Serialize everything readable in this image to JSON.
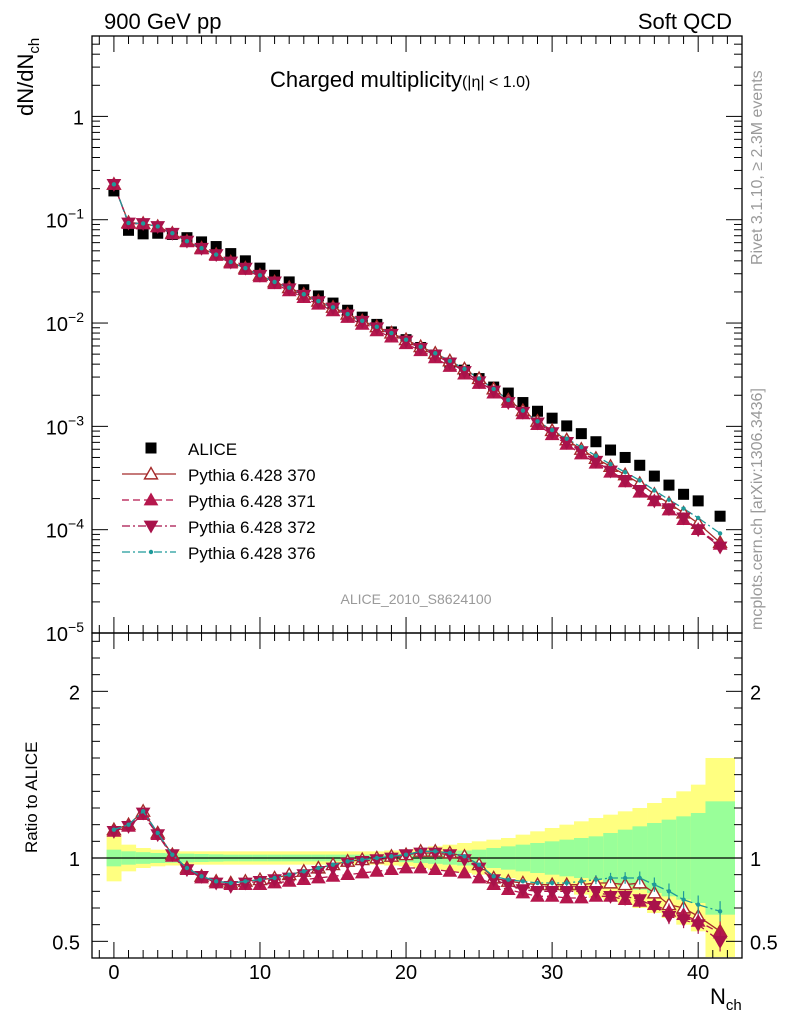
{
  "header": {
    "left": "900 GeV pp",
    "right": "Soft QCD"
  },
  "side_text": {
    "rivet": "Rivet 3.1.10, ≥ 2.3M events",
    "mcplots": "mcplots.cern.ch [arXiv:1306.3436]"
  },
  "chart_data": [
    {
      "type": "scatter",
      "panel": "main",
      "title_main": "Charged multiplicity",
      "title_sub": "(|η| < 1.0)",
      "ylabel": "dN/dN",
      "ylabel_sub": "ch",
      "yscale": "log",
      "ylim": [
        1e-05,
        6
      ],
      "xlim": [
        -1.5,
        43
      ],
      "analysis_label": "ALICE_2010_S8624100",
      "y_tick_labels": [
        {
          "base": "10",
          "exp": "−5",
          "value": 1e-05
        },
        {
          "base": "10",
          "exp": "−4",
          "value": 0.0001
        },
        {
          "base": "10",
          "exp": "−3",
          "value": 0.001
        },
        {
          "base": "10",
          "exp": "−2",
          "value": 0.01
        },
        {
          "base": "10",
          "exp": "−1",
          "value": 0.1
        },
        {
          "base": "1",
          "exp": "",
          "value": 1
        }
      ],
      "legend": {
        "placement": "lower-left",
        "entries": [
          "ALICE",
          "Pythia 6.428 370",
          "Pythia 6.428 371",
          "Pythia 6.428 372",
          "Pythia 6.428 376"
        ]
      },
      "x": [
        0,
        1,
        2,
        3,
        4,
        5,
        6,
        7,
        8,
        9,
        10,
        11,
        12,
        13,
        14,
        15,
        16,
        17,
        18,
        19,
        20,
        21,
        22,
        23,
        24,
        25,
        26,
        27,
        28,
        29,
        30,
        31,
        32,
        33,
        34,
        35,
        36,
        37,
        38,
        39,
        40,
        41.5
      ],
      "series": [
        {
          "name": "ALICE",
          "color": "#000000",
          "marker": "square",
          "values": [
            0.19,
            0.079,
            0.073,
            0.074,
            0.072,
            0.067,
            0.061,
            0.055,
            0.047,
            0.04,
            0.034,
            0.029,
            0.025,
            0.021,
            0.0183,
            0.0156,
            0.0133,
            0.0114,
            0.0097,
            0.0082,
            0.0069,
            0.0058,
            0.0049,
            0.0041,
            0.0035,
            0.0029,
            0.0024,
            0.0021,
            0.0017,
            0.0014,
            0.0012,
            0.00101,
            0.00085,
            0.00071,
            0.00059,
            0.0005,
            0.00042,
            0.00033,
            0.00027,
            0.00022,
            0.00019,
            0.000135
          ]
        },
        {
          "name": "Pythia 6.428 370",
          "color": "#a52a2a",
          "marker": "triangle-up-open",
          "line": "solid",
          "values": [
            0.22,
            0.094,
            0.092,
            0.086,
            0.074,
            0.062,
            0.053,
            0.046,
            0.039,
            0.034,
            0.029,
            0.025,
            0.022,
            0.019,
            0.0163,
            0.0142,
            0.0122,
            0.0105,
            0.0092,
            0.008,
            0.0069,
            0.0059,
            0.0051,
            0.0043,
            0.0036,
            0.0029,
            0.0023,
            0.0018,
            0.00142,
            0.00112,
            0.00091,
            0.00074,
            0.0006,
            0.00049,
            0.00041,
            0.00034,
            0.00028,
            0.00022,
            0.00018,
            0.000145,
            0.000115,
            7.5e-05
          ]
        },
        {
          "name": "Pythia 6.428 371",
          "color": "#b5174d",
          "marker": "triangle-up",
          "line": "dashed",
          "values": [
            0.22,
            0.092,
            0.091,
            0.085,
            0.073,
            0.061,
            0.052,
            0.045,
            0.038,
            0.033,
            0.028,
            0.024,
            0.0205,
            0.0176,
            0.0152,
            0.0131,
            0.0113,
            0.0097,
            0.0084,
            0.0073,
            0.0063,
            0.0054,
            0.0046,
            0.0038,
            0.0032,
            0.0026,
            0.0021,
            0.0017,
            0.00132,
            0.00104,
            0.00083,
            0.00067,
            0.00054,
            0.00044,
            0.00036,
            0.00029,
            0.00023,
            0.00019,
            0.000155,
            0.000125,
            0.0001,
            7.2e-05
          ]
        },
        {
          "name": "Pythia 6.428 372",
          "color": "#a8124a",
          "marker": "triangle-down",
          "line": "dashdot",
          "values": [
            0.22,
            0.093,
            0.092,
            0.086,
            0.074,
            0.062,
            0.053,
            0.046,
            0.039,
            0.034,
            0.029,
            0.025,
            0.0215,
            0.0186,
            0.0161,
            0.014,
            0.012,
            0.0104,
            0.009,
            0.0078,
            0.0067,
            0.0057,
            0.0049,
            0.0041,
            0.0034,
            0.0027,
            0.0022,
            0.0017,
            0.00137,
            0.00108,
            0.00087,
            0.0007,
            0.00057,
            0.00046,
            0.00037,
            0.0003,
            0.00024,
            0.00019,
            0.00016,
            0.00013,
            0.0001,
            6.8e-05
          ]
        },
        {
          "name": "Pythia 6.428 376",
          "color": "#1e9a9a",
          "marker": "dot",
          "line": "dashdot",
          "values": [
            0.22,
            0.093,
            0.092,
            0.086,
            0.074,
            0.062,
            0.053,
            0.046,
            0.039,
            0.034,
            0.029,
            0.025,
            0.022,
            0.019,
            0.0163,
            0.0142,
            0.0122,
            0.0105,
            0.0092,
            0.008,
            0.0069,
            0.0059,
            0.0051,
            0.0043,
            0.0036,
            0.0029,
            0.0023,
            0.0018,
            0.00142,
            0.00112,
            0.00092,
            0.00076,
            0.00063,
            0.00052,
            0.00043,
            0.00036,
            0.0003,
            0.00024,
            0.000195,
            0.00016,
            0.00013,
            9.2e-05
          ]
        }
      ]
    },
    {
      "type": "line",
      "panel": "ratio",
      "ylabel": "Ratio to ALICE",
      "xlabel": "N",
      "xlabel_sub": "ch",
      "ylim": [
        0.4,
        2.35
      ],
      "xlim": [
        -1.5,
        43
      ],
      "x_ticks": [
        0,
        10,
        20,
        30,
        40
      ],
      "y_ticks": [
        0.5,
        1,
        2
      ],
      "reference_line": 1,
      "uncertainty_bands": {
        "edges": [
          -0.5,
          0.5,
          1.5,
          2.5,
          3.5,
          4.5,
          5.5,
          6.5,
          7.5,
          8.5,
          9.5,
          10.5,
          11.5,
          12.5,
          13.5,
          14.5,
          15.5,
          16.5,
          17.5,
          18.5,
          19.5,
          20.5,
          21.5,
          22.5,
          23.5,
          24.5,
          25.5,
          26.5,
          27.5,
          28.5,
          29.5,
          30.5,
          31.5,
          32.5,
          33.5,
          34.5,
          35.5,
          36.5,
          37.5,
          38.5,
          39.5,
          40.5,
          42.5
        ],
        "green_color": "#99ff99",
        "yellow_color": "#ffff80",
        "green_halfwidth": [
          0.05,
          0.04,
          0.035,
          0.03,
          0.028,
          0.026,
          0.024,
          0.022,
          0.02,
          0.02,
          0.02,
          0.02,
          0.02,
          0.02,
          0.02,
          0.02,
          0.02,
          0.02,
          0.02,
          0.022,
          0.025,
          0.03,
          0.035,
          0.04,
          0.045,
          0.05,
          0.06,
          0.07,
          0.08,
          0.09,
          0.1,
          0.11,
          0.12,
          0.13,
          0.15,
          0.17,
          0.19,
          0.21,
          0.23,
          0.25,
          0.27,
          0.34
        ],
        "yellow_halfwidth": [
          0.14,
          0.08,
          0.06,
          0.05,
          0.045,
          0.04,
          0.04,
          0.04,
          0.04,
          0.04,
          0.04,
          0.04,
          0.04,
          0.04,
          0.04,
          0.04,
          0.04,
          0.04,
          0.04,
          0.045,
          0.05,
          0.06,
          0.07,
          0.08,
          0.09,
          0.1,
          0.11,
          0.12,
          0.14,
          0.16,
          0.18,
          0.2,
          0.22,
          0.24,
          0.26,
          0.28,
          0.3,
          0.33,
          0.36,
          0.4,
          0.44,
          0.6
        ]
      },
      "x": [
        0,
        1,
        2,
        3,
        4,
        5,
        6,
        7,
        8,
        9,
        10,
        11,
        12,
        13,
        14,
        15,
        16,
        17,
        18,
        19,
        20,
        21,
        22,
        23,
        24,
        25,
        26,
        27,
        28,
        29,
        30,
        31,
        32,
        33,
        34,
        35,
        36,
        37,
        38,
        39,
        40,
        41.5
      ],
      "series": [
        {
          "name": "Pythia 6.428 370",
          "color": "#a52a2a",
          "marker": "triangle-up-open",
          "line": "solid",
          "values": [
            1.17,
            1.2,
            1.28,
            1.15,
            1.02,
            0.94,
            0.89,
            0.86,
            0.85,
            0.86,
            0.87,
            0.88,
            0.9,
            0.92,
            0.94,
            0.96,
            0.98,
            0.99,
            1.0,
            1.01,
            1.02,
            1.04,
            1.04,
            1.03,
            1.01,
            0.96,
            0.88,
            0.86,
            0.85,
            0.84,
            0.84,
            0.84,
            0.84,
            0.85,
            0.85,
            0.84,
            0.85,
            0.79,
            0.72,
            0.7,
            0.65,
            0.56
          ]
        },
        {
          "name": "Pythia 6.428 371",
          "color": "#b5174d",
          "marker": "triangle-up",
          "line": "dashed",
          "values": [
            1.16,
            1.19,
            1.26,
            1.14,
            1.01,
            0.93,
            0.88,
            0.85,
            0.84,
            0.84,
            0.84,
            0.85,
            0.86,
            0.87,
            0.88,
            0.89,
            0.9,
            0.91,
            0.92,
            0.93,
            0.94,
            0.94,
            0.93,
            0.92,
            0.91,
            0.88,
            0.84,
            0.81,
            0.79,
            0.77,
            0.77,
            0.76,
            0.76,
            0.77,
            0.77,
            0.75,
            0.74,
            0.72,
            0.68,
            0.66,
            0.62,
            0.55
          ]
        },
        {
          "name": "Pythia 6.428 372",
          "color": "#a8124a",
          "marker": "triangle-down",
          "line": "dashdot",
          "values": [
            1.16,
            1.19,
            1.27,
            1.14,
            1.02,
            0.93,
            0.89,
            0.85,
            0.83,
            0.85,
            0.86,
            0.87,
            0.88,
            0.9,
            0.92,
            0.94,
            0.97,
            0.98,
            0.99,
            1.0,
            1.02,
            1.03,
            1.03,
            1.02,
            0.99,
            0.94,
            0.87,
            0.84,
            0.81,
            0.8,
            0.8,
            0.8,
            0.8,
            0.8,
            0.77,
            0.77,
            0.75,
            0.71,
            0.65,
            0.63,
            0.6,
            0.5
          ]
        },
        {
          "name": "Pythia 6.428 376",
          "color": "#1e9a9a",
          "marker": "dot",
          "line": "dashdot",
          "values": [
            1.17,
            1.2,
            1.28,
            1.15,
            1.02,
            0.94,
            0.89,
            0.86,
            0.85,
            0.86,
            0.87,
            0.88,
            0.9,
            0.92,
            0.94,
            0.96,
            0.98,
            0.99,
            1.0,
            1.01,
            1.02,
            1.04,
            1.04,
            1.03,
            1.01,
            0.96,
            0.89,
            0.87,
            0.86,
            0.85,
            0.85,
            0.85,
            0.86,
            0.87,
            0.88,
            0.88,
            0.88,
            0.84,
            0.8,
            0.75,
            0.72,
            0.68
          ]
        }
      ]
    }
  ]
}
